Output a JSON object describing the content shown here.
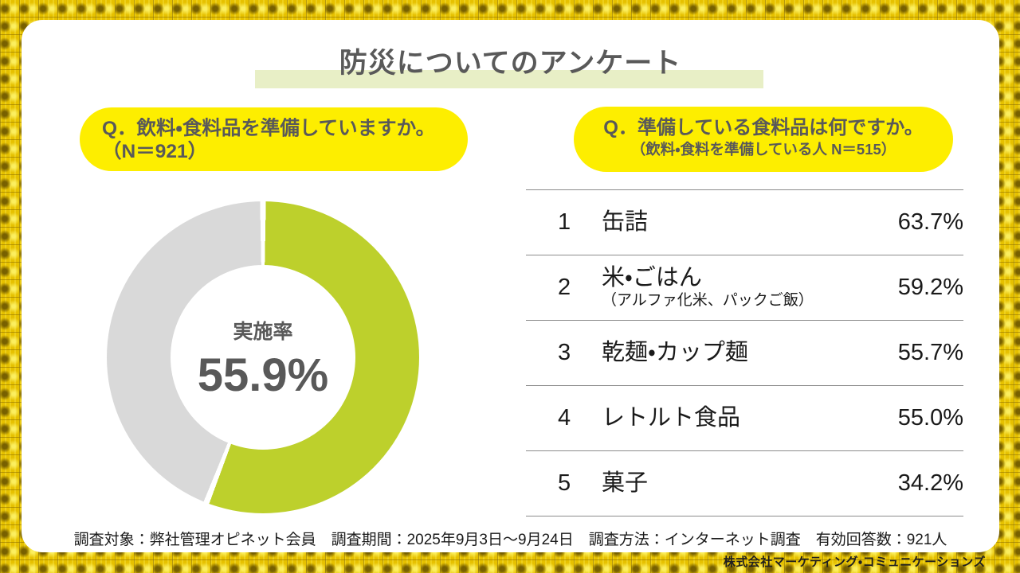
{
  "title": {
    "text": "防災についてのアンケート"
  },
  "left_panel": {
    "question": {
      "line1": "Q．飲料・食料品を準備していますか。",
      "line2": "（N＝921）"
    }
  },
  "right_panel": {
    "question": {
      "line1": "Q．準備している食料品は何ですか。",
      "line2": "（飲料・食料を準備している人 N＝515）"
    }
  },
  "survey_note": {
    "text": "調査対象：弊社管理オピネット会員　調査期間：2025年9月3日～9月24日　調査方法：インターネット調査　有効回答数：921人"
  },
  "branding": {
    "company": "株式会社マーケティング・コミュニケーションズ"
  },
  "colors": {
    "accent_green": "#bdd02c",
    "remainder_gray": "#d9d9d9",
    "badge_yellow": "#fdee00",
    "title_highlight": "#e8efc6",
    "text_dark_gray": "#595959",
    "text_black": "#1a1a1a",
    "divider_gray": "#8c8c8c",
    "border_gold": "#e6c100"
  },
  "chart_data": [
    {
      "type": "pie",
      "subtype": "donut",
      "center_label": "実施率",
      "center_value": "55.9%",
      "start_angle_deg": 0,
      "direction": "clockwise",
      "slices": [
        {
          "name": "implemented",
          "value": 55.9,
          "color": "#bdd02c"
        },
        {
          "name": "remainder",
          "value": 44.1,
          "color": "#d9d9d9"
        }
      ]
    },
    {
      "type": "table",
      "columns": [
        "rank",
        "item",
        "percent"
      ],
      "rows": [
        {
          "rank": "1",
          "item": "缶詰",
          "note": "",
          "percent": "63.7%"
        },
        {
          "rank": "2",
          "item": "米・ごはん",
          "note": "（アルファ化米、パックご飯）",
          "percent": "59.2%"
        },
        {
          "rank": "3",
          "item": "乾麺・カップ麺",
          "note": "",
          "percent": "55.7%"
        },
        {
          "rank": "4",
          "item": "レトルト食品",
          "note": "",
          "percent": "55.0%"
        },
        {
          "rank": "5",
          "item": "菓子",
          "note": "",
          "percent": "34.2%"
        }
      ]
    }
  ]
}
